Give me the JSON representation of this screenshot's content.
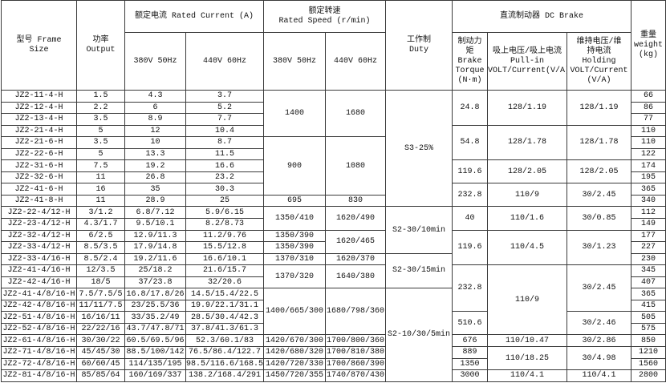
{
  "header": {
    "frame": "型号   Frame\nSize",
    "output": "功率\nOutput",
    "rated_current": "额定电流 Rated Current (A)",
    "rated_speed": "额定转速\nRated Speed (r/min)",
    "v380": "380V 50Hz",
    "v440": "440V 60Hz",
    "duty": "工作制\nDuty",
    "dc_brake": "直流制动器 DC Brake",
    "torque": "制动力\n矩\nBrake\nTorque\n(N·m)",
    "pullin": "吸上电压/吸上电流\nPull-in\nVOLT/Current(V/A)",
    "holding": "维持电压/维\n持电流\nHolding\nVOLT/Current\n(V/A)",
    "weight": "重量\nweight\n(kg)"
  },
  "columns": {
    "model": [
      "JZ2-11-4-H",
      "JZ2-12-4-H",
      "JZ2-13-4-H",
      "JZ2-21-4-H",
      "JZ2-21-6-H",
      "JZ2-22-6-H",
      "JZ2-31-6-H",
      "JZ2-32-6-H",
      "JZ2-41-6-H",
      "JZ2-41-8-H",
      "JZ2-22-4/12-H",
      "JZ2-23-4/12-H",
      "JZ2-32-4/12-H",
      "JZ2-33-4/12-H",
      "JZ2-33-4/16-H",
      "JZ2-41-4/16-H",
      "JZ2-42-4/16-H",
      "JZ2-41-4/8/16-H",
      "JZ2-42-4/8/16-H",
      "JZ2-51-4/8/16-H",
      "JZ2-52-4/8/16-H",
      "JZ2-61-4/8/16-H",
      "JZ2-71-4/8/16-H",
      "JZ2-72-4/8/16-H",
      "JZ2-81-4/8/16-H"
    ],
    "output": [
      "1.5",
      "2.2",
      "3.5",
      "5",
      "3.5",
      "5",
      "7.5",
      "11",
      "16",
      "11",
      "3/1.2",
      "4.3/1.7",
      "6/2.5",
      "8.5/3.5",
      "8.5/2.4",
      "12/3.5",
      "18/5",
      "7.5/7.5/5",
      "11/11/7.5",
      "16/16/11",
      "22/22/16",
      "30/30/22",
      "45/45/30",
      "60/60/45",
      "85/85/64"
    ],
    "current_380": [
      "4.3",
      "6",
      "8.9",
      "12",
      "10",
      "13.3",
      "19.2",
      "26.8",
      "35",
      "28.9",
      "6.8/7.12",
      "9.5/10.1",
      "12.9/11.3",
      "17.9/14.8",
      "19.2/11.6",
      "25/18.2",
      "37/23.8",
      "16.8/17.8/26",
      "23/25.5/36",
      "33/35.2/49",
      "43.7/47.8/71",
      "60.5/69.5/96",
      "88.5/100/142",
      "114/135/195",
      "160/169/337"
    ],
    "current_440": [
      "3.7",
      "5.2",
      "7.7",
      "10.4",
      "8.7",
      "11.5",
      "16.6",
      "23.2",
      "30.3",
      "25",
      "5.9/6.15",
      "8.2/8.73",
      "11.2/9.76",
      "15.5/12.8",
      "16.6/10.1",
      "21.6/15.7",
      "32/20.6",
      "14.5/15.4/22.5",
      "19.9/22.1/31.1",
      "28.5/30.4/42.3",
      "37.8/41.3/61.3",
      "52.3/60.1/83",
      "76.5/86.4/122.7",
      "98.5/116.6/168.5",
      "138.2/168.4/291"
    ],
    "speed_380": [
      {
        "v": "1400",
        "span": 4
      },
      {
        "v": "900",
        "span": 5
      },
      {
        "v": "695",
        "span": 1
      },
      {
        "v": "1350/410",
        "span": 2
      },
      {
        "v": "1350/390",
        "span": 1
      },
      {
        "v": "1350/390",
        "span": 1
      },
      {
        "v": "1370/310",
        "span": 1
      },
      {
        "v": "1370/320",
        "span": 2
      },
      {
        "v": "1400/665/300",
        "span": 4
      },
      {
        "v": "1420/670/300",
        "span": 1
      },
      {
        "v": "1420/680/320",
        "span": 1
      },
      {
        "v": "1420/720/330",
        "span": 1
      },
      {
        "v": "1450/720/355",
        "span": 1
      }
    ],
    "speed_440": [
      {
        "v": "1680",
        "span": 4
      },
      {
        "v": "1080",
        "span": 5
      },
      {
        "v": "830",
        "span": 1
      },
      {
        "v": "1620/490",
        "span": 2
      },
      {
        "v": "1620/465",
        "span": 2
      },
      {
        "v": "1620/370",
        "span": 1
      },
      {
        "v": "1640/380",
        "span": 2
      },
      {
        "v": "1680/798/360",
        "span": 4
      },
      {
        "v": "1700/800/360",
        "span": 1
      },
      {
        "v": "1700/810/380",
        "span": 1
      },
      {
        "v": "1700/860/390",
        "span": 1
      },
      {
        "v": "1740/870/430",
        "span": 1
      }
    ],
    "duty": [
      {
        "v": "S3-25%",
        "span": 10
      },
      {
        "v": "S2-30/10min",
        "span": 4
      },
      {
        "v": "S2-30/15min",
        "span": 3
      },
      {
        "v": "S2-10/30/5min",
        "span": 8
      }
    ],
    "torque": [
      {
        "v": "24.8",
        "span": 3
      },
      {
        "v": "54.8",
        "span": 3
      },
      {
        "v": "119.6",
        "span": 2
      },
      {
        "v": "232.8",
        "span": 2
      },
      {
        "v": "40",
        "span": 2
      },
      {
        "v": "119.6",
        "span": 3
      },
      {
        "v": "232.8",
        "span": 4
      },
      {
        "v": "510.6",
        "span": 2
      },
      {
        "v": "676",
        "span": 1
      },
      {
        "v": "889",
        "span": 1
      },
      {
        "v": "1350",
        "span": 1
      },
      {
        "v": "3000",
        "span": 1
      }
    ],
    "pullin": [
      {
        "v": "128/1.19",
        "span": 3
      },
      {
        "v": "128/1.78",
        "span": 3
      },
      {
        "v": "128/2.05",
        "span": 2
      },
      {
        "v": "110/9",
        "span": 2
      },
      {
        "v": "110/1.6",
        "span": 2
      },
      {
        "v": "110/4.5",
        "span": 3
      },
      {
        "v": "110/9",
        "span": 6
      },
      {
        "v": "110/10.47",
        "span": 1
      },
      {
        "v": "110/18.25",
        "span": 2
      },
      {
        "v": "110/4.1",
        "span": 1
      }
    ],
    "holding": [
      {
        "v": "128/1.19",
        "span": 3
      },
      {
        "v": "128/1.78",
        "span": 3
      },
      {
        "v": "128/2.05",
        "span": 2
      },
      {
        "v": "30/2.45",
        "span": 2
      },
      {
        "v": "30/0.85",
        "span": 2
      },
      {
        "v": "30/1.23",
        "span": 3
      },
      {
        "v": "30/2.45",
        "span": 4
      },
      {
        "v": "30/2.46",
        "span": 2
      },
      {
        "v": "30/2.86",
        "span": 1
      },
      {
        "v": "30/4.98",
        "span": 2
      },
      {
        "v": "110/4.1",
        "span": 1
      }
    ],
    "weight": [
      "66",
      "86",
      "77",
      "110",
      "110",
      "122",
      "174",
      "195",
      "365",
      "340",
      "112",
      "149",
      "177",
      "227",
      "230",
      "345",
      "407",
      "365",
      "415",
      "505",
      "575",
      "850",
      "1210",
      "1560",
      "2800"
    ]
  }
}
